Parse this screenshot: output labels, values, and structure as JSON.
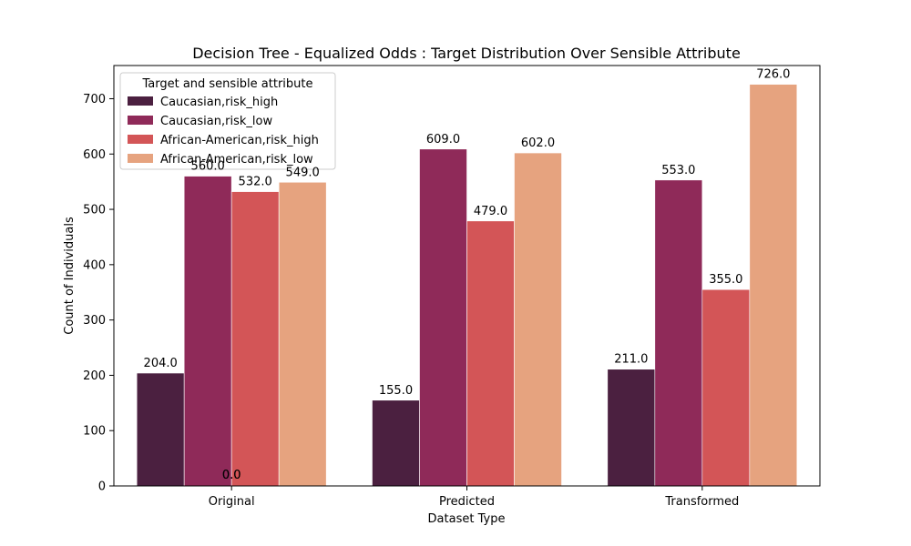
{
  "chart_data": {
    "type": "bar",
    "title": "Decision Tree - Equalized Odds : Target Distribution Over Sensible Attribute",
    "xlabel": "Dataset Type",
    "ylabel": "Count of Individuals",
    "categories": [
      "Original",
      "Predicted",
      "Transformed"
    ],
    "ylim": [
      0,
      760
    ],
    "yticks": [
      0,
      100,
      200,
      300,
      400,
      500,
      600,
      700
    ],
    "legend_title": "Target and sensible attribute",
    "legend_location": "upper-left",
    "series": [
      {
        "name": "Caucasian,risk_high",
        "color": "#4b2040",
        "values": [
          204,
          155,
          211
        ]
      },
      {
        "name": "Caucasian,risk_low",
        "color": "#8f2a59",
        "values": [
          560,
          609,
          553
        ]
      },
      {
        "name": "African-American,risk_high",
        "color": "#d35557",
        "values": [
          532,
          479,
          355
        ]
      },
      {
        "name": "African-American,risk_low",
        "color": "#e6a37f",
        "values": [
          549,
          602,
          726
        ]
      }
    ],
    "data_labels": [
      [
        "204.0",
        "155.0",
        "211.0"
      ],
      [
        "560.0",
        "609.0",
        "553.0"
      ],
      [
        "532.0",
        "479.0",
        "355.0"
      ],
      [
        "549.0",
        "602.0",
        "726.0"
      ]
    ],
    "extra_labels": [
      "0.0",
      "0.0"
    ]
  }
}
